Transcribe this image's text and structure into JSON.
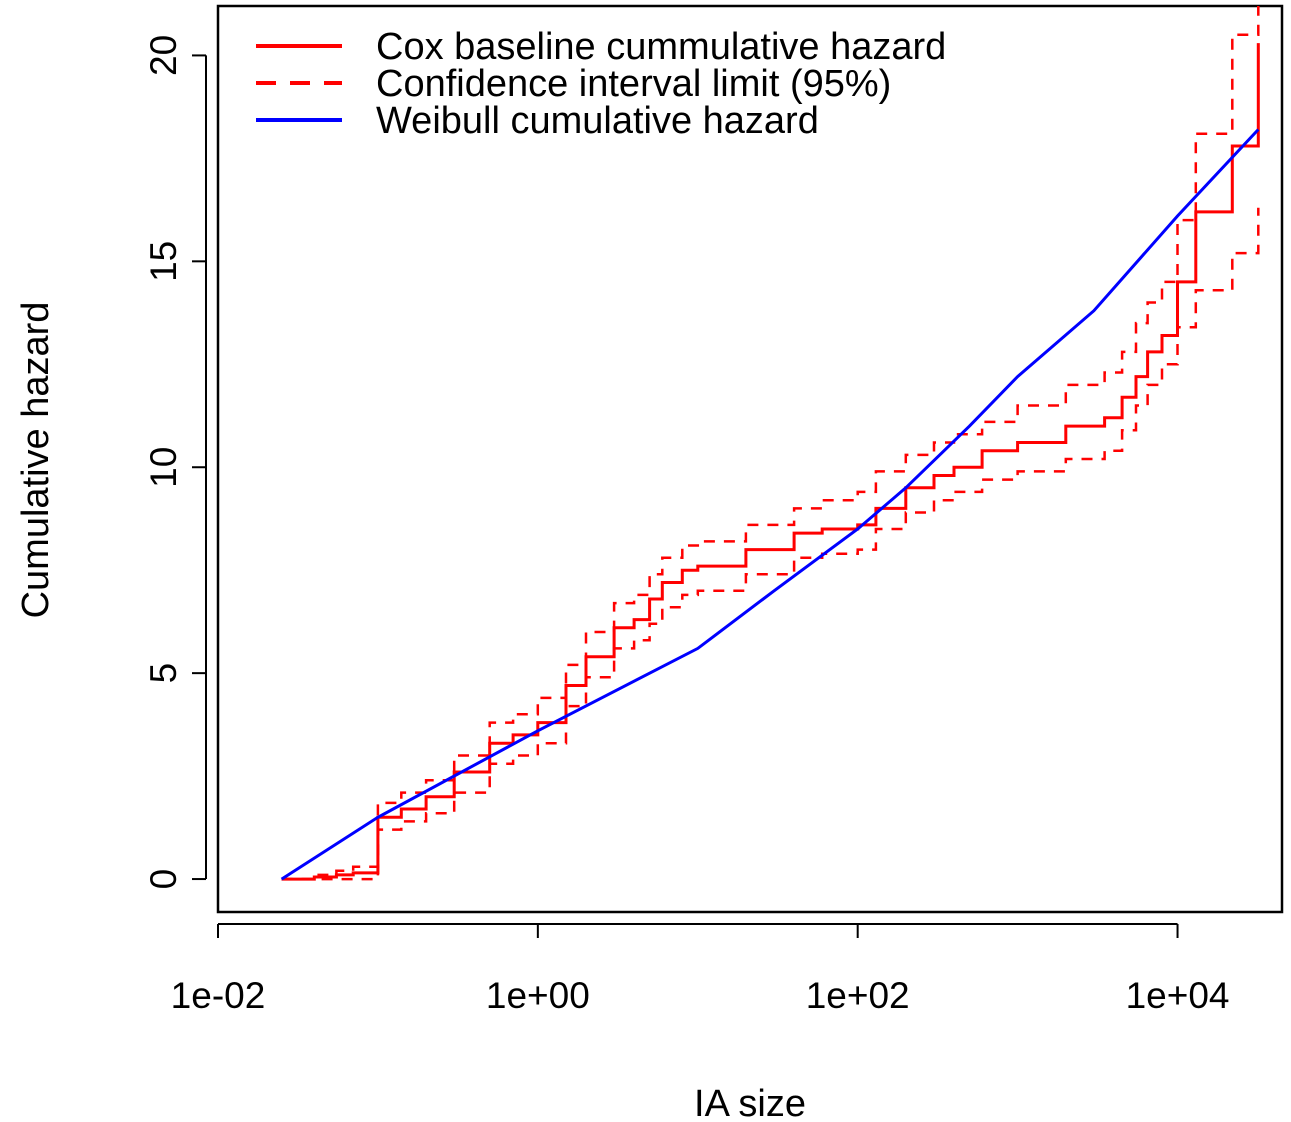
{
  "chart_data": {
    "type": "line",
    "xlabel": "IA size",
    "ylabel": "Cumulative hazard",
    "x_scale": "log10",
    "xlim": [
      0.01,
      45000
    ],
    "ylim": [
      -0.8,
      21.2
    ],
    "x_ticks": [
      {
        "value": 0.01,
        "label": "1e-02"
      },
      {
        "value": 1,
        "label": "1e+00"
      },
      {
        "value": 100,
        "label": "1e+02"
      },
      {
        "value": 10000,
        "label": "1e+04"
      }
    ],
    "y_ticks": [
      {
        "value": 0,
        "label": "0"
      },
      {
        "value": 5,
        "label": "5"
      },
      {
        "value": 10,
        "label": "10"
      },
      {
        "value": 15,
        "label": "15"
      },
      {
        "value": 20,
        "label": "20"
      }
    ],
    "grid": false,
    "legend_position": "top-left",
    "series": [
      {
        "name": "Cox baseline cummulative hazard",
        "color": "#ff0000",
        "style": "solid",
        "step": true,
        "x": [
          0.025,
          0.04,
          0.055,
          0.07,
          0.1,
          0.14,
          0.2,
          0.3,
          0.5,
          0.7,
          1.0,
          1.5,
          2.0,
          3.0,
          4.0,
          5.0,
          6.0,
          8.0,
          10,
          20,
          40,
          60,
          100,
          130,
          200,
          300,
          400,
          600,
          1000,
          2000,
          3500,
          4500,
          5500,
          6500,
          8000,
          10000,
          13000,
          22000,
          32000
        ],
        "y": [
          0.0,
          0.05,
          0.1,
          0.15,
          1.5,
          1.7,
          2.0,
          2.6,
          3.3,
          3.5,
          3.8,
          4.7,
          5.4,
          6.1,
          6.3,
          6.8,
          7.2,
          7.5,
          7.6,
          8.0,
          8.4,
          8.5,
          8.6,
          9.0,
          9.5,
          9.8,
          10.0,
          10.4,
          10.6,
          11.0,
          11.2,
          11.7,
          12.2,
          12.8,
          13.2,
          14.5,
          16.2,
          17.8,
          20.3
        ]
      },
      {
        "name": "Confidence interval limit (95%)",
        "color": "#ff0000",
        "style": "dashed",
        "step": true,
        "x": [
          0.025,
          0.04,
          0.055,
          0.07,
          0.1,
          0.14,
          0.2,
          0.3,
          0.5,
          0.7,
          1.0,
          1.5,
          2.0,
          3.0,
          4.0,
          5.0,
          6.0,
          8.0,
          10,
          20,
          40,
          60,
          100,
          130,
          200,
          300,
          400,
          600,
          1000,
          2000,
          3500,
          4500,
          5500,
          6500,
          8000,
          10000,
          13000,
          22000,
          32000
        ],
        "y": [
          0.0,
          0.1,
          0.2,
          0.3,
          1.85,
          2.1,
          2.4,
          3.0,
          3.8,
          4.0,
          4.4,
          5.2,
          6.0,
          6.7,
          6.9,
          7.4,
          7.8,
          8.1,
          8.2,
          8.6,
          9.0,
          9.2,
          9.4,
          9.9,
          10.3,
          10.6,
          10.8,
          11.1,
          11.5,
          12.0,
          12.3,
          12.8,
          13.5,
          14.0,
          14.5,
          16.0,
          18.1,
          20.5,
          21.2
        ]
      },
      {
        "name": "",
        "color": "#ff0000",
        "style": "dashed",
        "step": true,
        "x": [
          0.025,
          0.04,
          0.055,
          0.07,
          0.1,
          0.14,
          0.2,
          0.3,
          0.5,
          0.7,
          1.0,
          1.5,
          2.0,
          3.0,
          4.0,
          5.0,
          6.0,
          8.0,
          10,
          20,
          40,
          60,
          100,
          130,
          200,
          300,
          400,
          600,
          1000,
          2000,
          3500,
          4500,
          5500,
          6500,
          8000,
          10000,
          13000,
          22000,
          32000
        ],
        "y": [
          0.0,
          0.0,
          0.0,
          0.0,
          1.2,
          1.4,
          1.6,
          2.1,
          2.8,
          3.0,
          3.3,
          4.2,
          4.9,
          5.6,
          5.8,
          6.2,
          6.6,
          6.9,
          7.0,
          7.4,
          7.8,
          7.9,
          8.0,
          8.5,
          8.9,
          9.2,
          9.4,
          9.7,
          9.9,
          10.2,
          10.4,
          10.9,
          11.5,
          12.0,
          12.5,
          13.4,
          14.3,
          15.2,
          16.3
        ]
      },
      {
        "name": "Weibull cumulative hazard",
        "color": "#0000ff",
        "style": "solid",
        "step": false,
        "x": [
          0.025,
          0.1,
          1.0,
          10,
          30,
          100,
          200,
          500,
          1000,
          3000,
          10000,
          32000
        ],
        "y": [
          0.0,
          1.5,
          3.6,
          5.6,
          7.0,
          8.5,
          9.5,
          11.0,
          12.2,
          13.8,
          16.1,
          18.2
        ]
      }
    ]
  }
}
